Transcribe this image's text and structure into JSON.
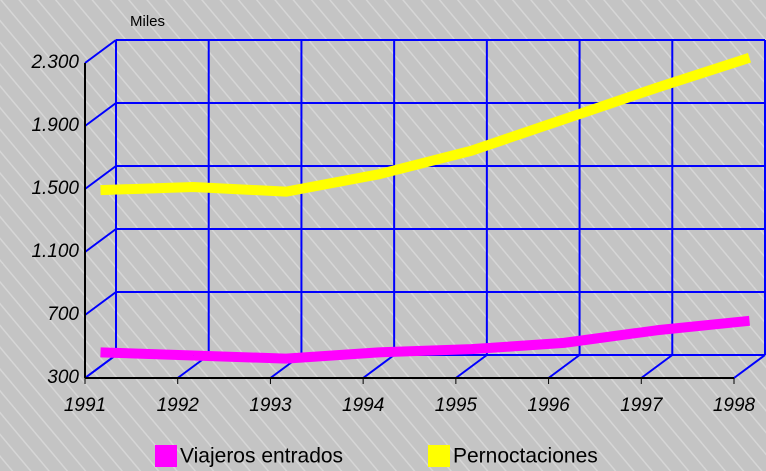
{
  "chart_data": {
    "type": "line",
    "y_axis_label": "Miles",
    "categories": [
      "1991",
      "1992",
      "1993",
      "1994",
      "1995",
      "1996",
      "1997",
      "1998"
    ],
    "series": [
      {
        "name": "Viajeros entrados",
        "color": "#ff00ff",
        "values": [
          390,
          370,
          350,
          390,
          410,
          450,
          530,
          590
        ]
      },
      {
        "name": "Pernoctaciones",
        "color": "#ffff00",
        "values": [
          1420,
          1440,
          1410,
          1520,
          1670,
          1870,
          2070,
          2260
        ]
      }
    ],
    "ylim": [
      300,
      2300
    ],
    "yticks": [
      300,
      700,
      {
        "value": 1100,
        "label": "1.100"
      },
      {
        "value": 1500,
        "label": "1.500"
      },
      {
        "value": 1900,
        "label": "1.900"
      },
      {
        "value": 2300,
        "label": "2.300"
      }
    ],
    "grid": true,
    "grid_color": "#0000ff",
    "legend": "bottom"
  }
}
